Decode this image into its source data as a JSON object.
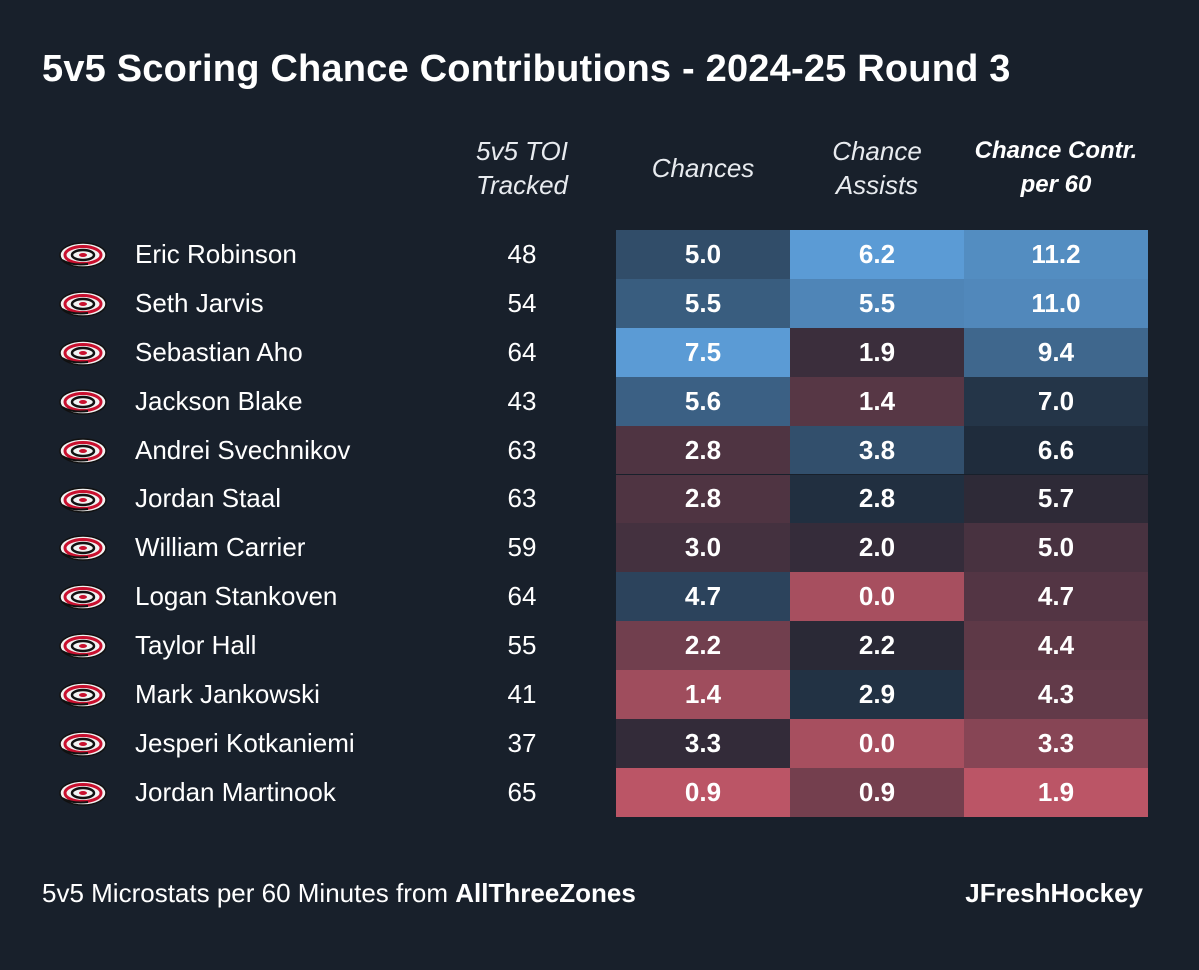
{
  "title": "5v5 Scoring Chance Contributions - 2024-25 Round 3",
  "columns": {
    "toi": [
      "5v5 TOI",
      "Tracked"
    ],
    "chances": [
      "Chances"
    ],
    "assists": [
      "Chance",
      "Assists"
    ],
    "contr": [
      "Chance Contr.",
      "per 60"
    ]
  },
  "footer": {
    "source_prefix": "5v5 Microstats per 60 Minutes from ",
    "source_name": "AllThreeZones",
    "credit": "JFreshHockey"
  },
  "team_icon": "hurricanes-logo-icon",
  "colors": {
    "background": "#18202b",
    "high": "#5b9bd5",
    "low": "#ee6577",
    "neutral": "#1b2431"
  },
  "chart_data": {
    "type": "table",
    "title": "5v5 Scoring Chance Contributions - 2024-25 Round 3",
    "columns": [
      "5v5 TOI Tracked",
      "Chances",
      "Chance Assists",
      "Chance Contr. per 60"
    ],
    "rows": [
      {
        "player": "Eric Robinson",
        "toi": "48",
        "chances": "5.0",
        "assists": "6.2",
        "contr": "11.2"
      },
      {
        "player": "Seth Jarvis",
        "toi": "54",
        "chances": "5.5",
        "assists": "5.5",
        "contr": "11.0"
      },
      {
        "player": "Sebastian Aho",
        "toi": "64",
        "chances": "7.5",
        "assists": "1.9",
        "contr": "9.4"
      },
      {
        "player": "Jackson Blake",
        "toi": "43",
        "chances": "5.6",
        "assists": "1.4",
        "contr": "7.0"
      },
      {
        "player": "Andrei Svechnikov",
        "toi": "63",
        "chances": "2.8",
        "assists": "3.8",
        "contr": "6.6"
      },
      {
        "player": "Jordan Staal",
        "toi": "63",
        "chances": "2.8",
        "assists": "2.8",
        "contr": "5.7"
      },
      {
        "player": "William Carrier",
        "toi": "59",
        "chances": "3.0",
        "assists": "2.0",
        "contr": "5.0"
      },
      {
        "player": "Logan Stankoven",
        "toi": "64",
        "chances": "4.7",
        "assists": "0.0",
        "contr": "4.7"
      },
      {
        "player": "Taylor Hall",
        "toi": "55",
        "chances": "2.2",
        "assists": "2.2",
        "contr": "4.4"
      },
      {
        "player": "Mark Jankowski",
        "toi": "41",
        "chances": "1.4",
        "assists": "2.9",
        "contr": "4.3"
      },
      {
        "player": "Jesperi Kotkaniemi",
        "toi": "37",
        "chances": "3.3",
        "assists": "0.0",
        "contr": "3.3"
      },
      {
        "player": "Jordan Martinook",
        "toi": "65",
        "chances": "0.9",
        "assists": "0.9",
        "contr": "1.9"
      }
    ]
  }
}
